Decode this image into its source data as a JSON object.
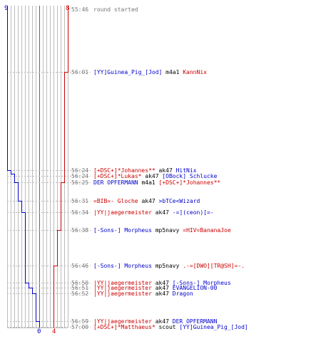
{
  "teams": {
    "blue": {
      "color": "#0000cc",
      "start_count": "9",
      "end_count": "0"
    },
    "red": {
      "color": "#cc0000",
      "start_count": "8",
      "end_count": "4"
    }
  },
  "colors": {
    "neutral": "#000000",
    "time": "#777777",
    "grid": "#bbbbbb",
    "center": "#666666"
  },
  "events": [
    {
      "time": "55:46",
      "parts": [
        {
          "text": "round started",
          "color": "#777777"
        }
      ]
    },
    {
      "time": "56:01",
      "parts": [
        {
          "text": "[YY]Guinea_Pig_[Jod]",
          "color": "#0000cc"
        },
        {
          "text": " m4a1 ",
          "color": "#000000"
        },
        {
          "text": "KannNix",
          "color": "#cc0000"
        }
      ]
    },
    {
      "time": "56:24",
      "parts": [
        {
          "text": "[+DSC+]*Johannes**",
          "color": "#cc0000"
        },
        {
          "text": " ak47 ",
          "color": "#000000"
        },
        {
          "text": "HitNix",
          "color": "#0000cc"
        }
      ]
    },
    {
      "time": "56:24",
      "parts": [
        {
          "text": "[+DSC+]*Lukas*",
          "color": "#cc0000"
        },
        {
          "text": " ak47 ",
          "color": "#000000"
        },
        {
          "text": "[OBock] Schlucke",
          "color": "#0000cc"
        }
      ]
    },
    {
      "time": "56:25",
      "parts": [
        {
          "text": "DER OPFERMANN",
          "color": "#0000cc"
        },
        {
          "text": " m4a1 ",
          "color": "#000000"
        },
        {
          "text": "[+DSC+]*Johannes**",
          "color": "#cc0000"
        }
      ]
    },
    {
      "time": "56:31",
      "parts": [
        {
          "text": "=BIB=- Gloche",
          "color": "#cc0000"
        },
        {
          "text": " ak47 ",
          "color": "#000000"
        },
        {
          "text": ">bTCe<Wizard",
          "color": "#0000cc"
        }
      ]
    },
    {
      "time": "56:34",
      "parts": [
        {
          "text": "|YY|jaegermeister",
          "color": "#cc0000"
        },
        {
          "text": " ak47 ",
          "color": "#000000"
        },
        {
          "text": "-=](ceon)[=-",
          "color": "#0000cc"
        }
      ]
    },
    {
      "time": "56:38",
      "parts": [
        {
          "text": "[-Sons-] Morpheus",
          "color": "#0000cc"
        },
        {
          "text": " mp5navy ",
          "color": "#000000"
        },
        {
          "text": "=HIV=BananaJoe",
          "color": "#cc0000"
        }
      ]
    },
    {
      "time": "56:46",
      "parts": [
        {
          "text": "[-Sons-] Morpheus",
          "color": "#0000cc"
        },
        {
          "text": " mp5navy ",
          "color": "#000000"
        },
        {
          "text": ".-=[DWO][TR@SH]=-.",
          "color": "#cc0000"
        }
      ]
    },
    {
      "time": "56:50",
      "parts": [
        {
          "text": "|YY|jaegermeister",
          "color": "#cc0000"
        },
        {
          "text": " ak47 ",
          "color": "#000000"
        },
        {
          "text": "[-Sons-] Morpheus",
          "color": "#0000cc"
        }
      ]
    },
    {
      "time": "56:51",
      "parts": [
        {
          "text": "|YY|jaegermeister",
          "color": "#cc0000"
        },
        {
          "text": " ak47 ",
          "color": "#000000"
        },
        {
          "text": "EVANGELION-00",
          "color": "#0000cc"
        }
      ]
    },
    {
      "time": "56:52",
      "parts": [
        {
          "text": "|YY|jaegermeister",
          "color": "#cc0000"
        },
        {
          "text": " ak47 ",
          "color": "#000000"
        },
        {
          "text": "Dragon",
          "color": "#0000cc"
        }
      ]
    },
    {
      "time": "56:59",
      "parts": [
        {
          "text": "|YY|jaegermeister",
          "color": "#cc0000"
        },
        {
          "text": " ak47 ",
          "color": "#000000"
        },
        {
          "text": "DER OPFERMANN",
          "color": "#0000cc"
        }
      ]
    },
    {
      "time": "57:00",
      "parts": [
        {
          "text": "[+DSC+]*Matthaeus*",
          "color": "#cc0000"
        },
        {
          "text": " scout ",
          "color": "#000000"
        },
        {
          "text": "[YY]Guinea_Pig_[Jod]",
          "color": "#0000cc"
        }
      ]
    }
  ]
}
